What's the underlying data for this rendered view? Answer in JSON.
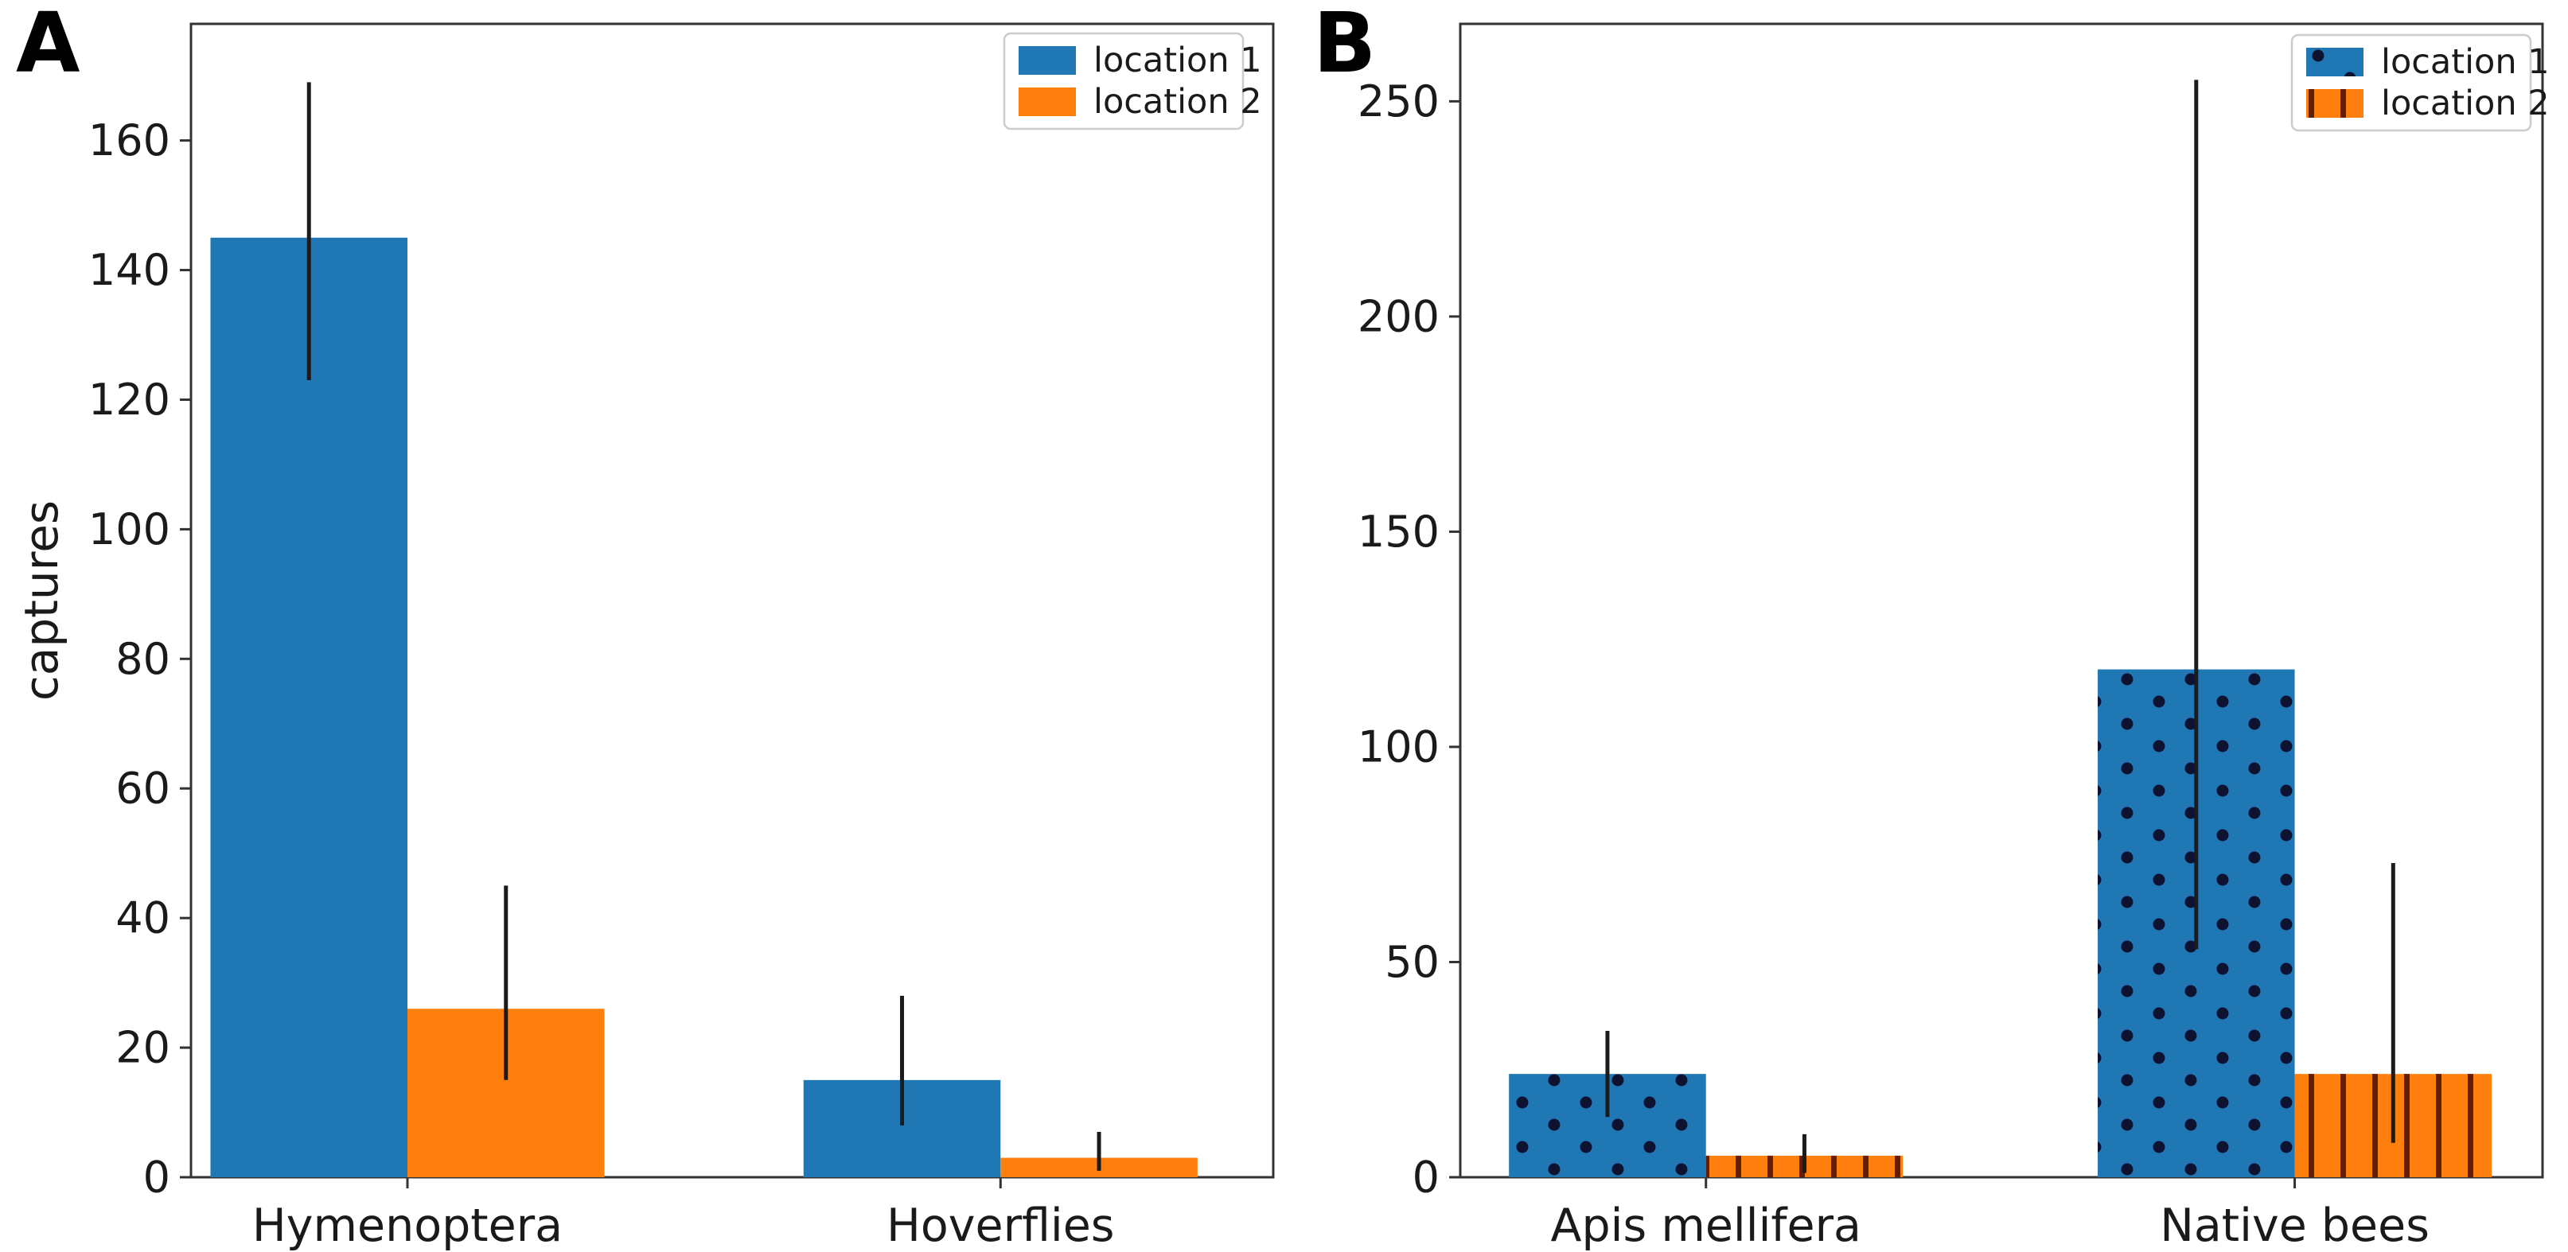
{
  "figure": {
    "background": "#ffffff",
    "style": {
      "frame_color": "#333333",
      "text_color": "#1a1a1a",
      "errorbar_color": "#1b1b1b",
      "legend_border_color": "#cccccc",
      "blue": "#1f77b4",
      "orange": "#ff7f0e",
      "dot_hatch_color": "#0c1230",
      "vline_hatch_color": "#5e2008"
    }
  },
  "chart_data": [
    {
      "type": "bar",
      "panel": "A",
      "title": "",
      "xlabel": "",
      "ylabel": "captures",
      "categories": [
        "Hymenoptera",
        "Hoverflies"
      ],
      "series": [
        {
          "name": "location 1",
          "color": "#1f77b4",
          "hatch": "none",
          "values": [
            145,
            15
          ],
          "err_low": [
            123,
            8
          ],
          "err_high": [
            169,
            28
          ]
        },
        {
          "name": "location 2",
          "color": "#ff7f0e",
          "hatch": "none",
          "values": [
            26,
            3
          ],
          "err_low": [
            15,
            1
          ],
          "err_high": [
            45,
            7
          ]
        }
      ],
      "yticks": [
        0,
        20,
        40,
        60,
        80,
        100,
        120,
        140,
        160
      ],
      "ylim": [
        0,
        178
      ],
      "grid": false,
      "error_bars": true,
      "legend_position": "upper right",
      "legend": [
        "location 1",
        "location 2"
      ]
    },
    {
      "type": "bar",
      "panel": "B",
      "title": "",
      "xlabel": "",
      "ylabel": "",
      "categories": [
        "Apis mellifera",
        "Native bees"
      ],
      "series": [
        {
          "name": "location 1",
          "color": "#1f77b4",
          "hatch": "dots",
          "values": [
            24,
            118
          ],
          "err_low": [
            14,
            53
          ],
          "err_high": [
            34,
            255
          ]
        },
        {
          "name": "location 2",
          "color": "#ff7f0e",
          "hatch": "vlines",
          "values": [
            5,
            24
          ],
          "err_low": [
            1,
            8
          ],
          "err_high": [
            10,
            73
          ]
        }
      ],
      "yticks": [
        0,
        50,
        100,
        150,
        200,
        250
      ],
      "ylim": [
        0,
        268
      ],
      "grid": false,
      "error_bars": true,
      "legend_position": "upper right",
      "legend": [
        "location 1",
        "location 2"
      ]
    }
  ]
}
